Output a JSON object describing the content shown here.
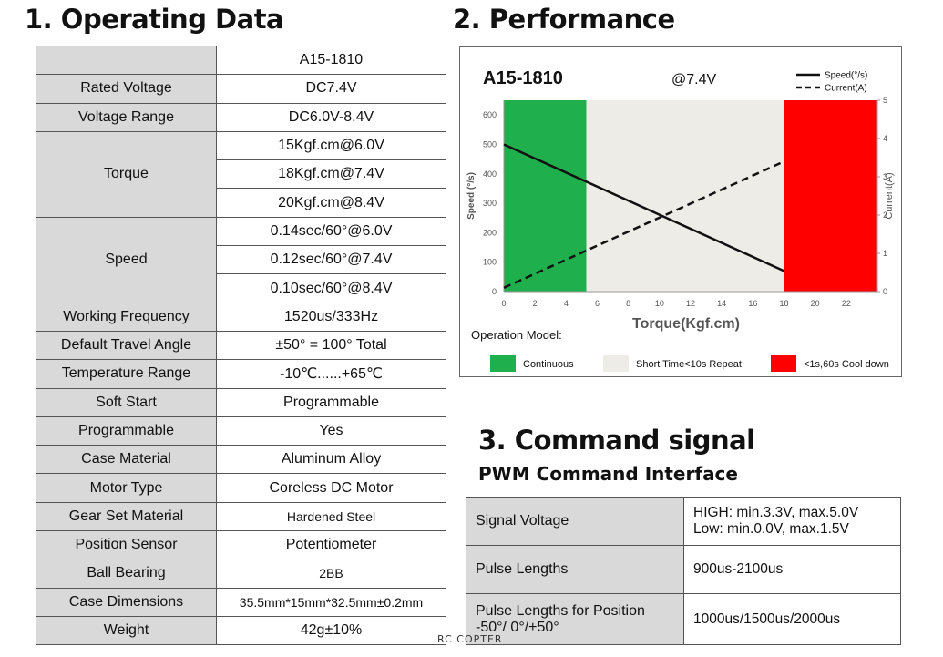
{
  "sections": {
    "operating_title": "1. Operating Data",
    "performance_title": "2. Performance",
    "command_title": "3. Command signal",
    "command_subtitle": "PWM Command Interface"
  },
  "operating_table": {
    "header_model": "A15-1810",
    "rows": [
      {
        "label": "Rated Voltage",
        "value": "DC7.4V"
      },
      {
        "label": "Voltage Range",
        "value": "DC6.0V-8.4V"
      },
      {
        "label": "Torque",
        "values": [
          "15Kgf.cm@6.0V",
          "18Kgf.cm@7.4V",
          "20Kgf.cm@8.4V"
        ]
      },
      {
        "label": "Speed",
        "values": [
          "0.14sec/60°@6.0V",
          "0.12sec/60°@7.4V",
          "0.10sec/60°@8.4V"
        ]
      },
      {
        "label": "Working Frequency",
        "value": "1520us/333Hz"
      },
      {
        "label": "Default Travel Angle",
        "value": "±50° = 100° Total"
      },
      {
        "label": "Temperature Range",
        "value": "-10℃......+65℃"
      },
      {
        "label": "Soft Start",
        "value": "Programmable"
      },
      {
        "label": "Programmable",
        "value": "Yes"
      },
      {
        "label": "Case Material",
        "value": "Aluminum Alloy"
      },
      {
        "label": "Motor Type",
        "value": "Coreless DC Motor"
      },
      {
        "label": "Gear Set Material",
        "value": "Hardened Steel"
      },
      {
        "label": "Position Sensor",
        "value": "Potentiometer"
      },
      {
        "label": "Ball Bearing",
        "value": "2BB"
      },
      {
        "label": "Case Dimensions",
        "value": "35.5mm*15mm*32.5mm±0.2mm"
      },
      {
        "label": "Weight",
        "value": "42g±10%"
      }
    ]
  },
  "chart_data": {
    "type": "line",
    "title": "A15-1810",
    "subtitle": "@7.4V",
    "xlabel": "Torque(Kgf.cm)",
    "ylabel": "Speed (°/s)",
    "y2label": "Current(A)",
    "xlim": [
      0,
      24
    ],
    "ylim": [
      0,
      650
    ],
    "y2lim": [
      0,
      5
    ],
    "xticks": [
      0,
      2,
      4,
      6,
      8,
      10,
      12,
      14,
      16,
      18,
      20,
      22
    ],
    "yticks": [
      0,
      100,
      200,
      300,
      400,
      500,
      600
    ],
    "y2ticks": [
      0,
      1,
      2,
      3,
      4,
      5
    ],
    "series": [
      {
        "name": "Speed(°/s)",
        "axis": "left",
        "style": "solid",
        "x": [
          0,
          18
        ],
        "y": [
          500,
          70
        ]
      },
      {
        "name": "Current(A)",
        "axis": "right",
        "style": "dashed",
        "x": [
          0,
          18
        ],
        "y": [
          0.1,
          3.4
        ]
      }
    ],
    "regions": [
      {
        "from": 0,
        "to": 5.3,
        "color": "#1faf4d",
        "label": "Continuous"
      },
      {
        "from": 5.3,
        "to": 18,
        "color": "#eeece6",
        "label": "Short Time<10s Repeat"
      },
      {
        "from": 18,
        "to": 24,
        "color": "#ff0000",
        "label": "<1s,60s Cool down"
      }
    ],
    "legend_title": "Operation Model:",
    "legend_placement": "top-right"
  },
  "command_table": {
    "rows": [
      {
        "label": "Signal Voltage",
        "value_lines": [
          "HIGH: min.3.3V, max.5.0V",
          "Low: min.0.0V, max.1.5V"
        ]
      },
      {
        "label": "Pulse Lengths",
        "value_lines": [
          "900us-2100us"
        ]
      },
      {
        "label_lines": [
          "Pulse Lengths for Position",
          "-50°/ 0°/+50°"
        ],
        "value_lines": [
          "1000us/1500us/2000us"
        ]
      }
    ]
  },
  "watermark": "RC COPTER"
}
